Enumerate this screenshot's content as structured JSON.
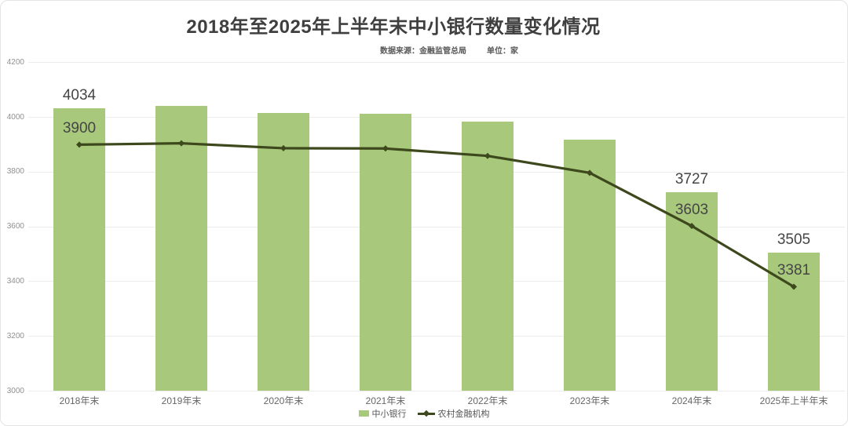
{
  "chart_data": {
    "type": "combo-bar-line",
    "title": "2018年至2025年上半年末中小银行数量变化情况",
    "source_note": "数据来源：金融监管总局",
    "unit_note": "单位：家",
    "categories": [
      "2018年末",
      "2019年末",
      "2020年末",
      "2021年末",
      "2022年末",
      "2023年末",
      "2024年末",
      "2025年上半年末"
    ],
    "series": [
      {
        "name": "中小银行",
        "type": "bar",
        "color": "#a8c87c",
        "values": [
          4034,
          4042,
          4017,
          4013,
          3984,
          3919,
          3727,
          3505
        ],
        "shown_labels": {
          "0": "4034",
          "6": "3727",
          "7": "3505"
        }
      },
      {
        "name": "农村金融机构",
        "type": "line",
        "color": "#3d481d",
        "values": [
          3900,
          3905,
          3887,
          3886,
          3859,
          3797,
          3603,
          3381
        ],
        "shown_labels": {
          "0": "3900",
          "6": "3603",
          "7": "3381"
        }
      }
    ],
    "ylim": [
      3000,
      4200
    ],
    "ytick_step": 200,
    "grid": true,
    "legend_position": "bottom"
  },
  "legend": [
    {
      "label": "中小银行",
      "marker": "square",
      "color": "#a8c87c"
    },
    {
      "label": "农村金融机构",
      "marker": "line-diamond",
      "color": "#3d481d"
    }
  ],
  "colors": {
    "grid": "#ececec",
    "ytick_text": "#909090",
    "xtick_text": "#666666",
    "value_label": "#454545",
    "title_text": "#3f3f3f",
    "subtitle_text": "#595959",
    "legend_text": "#555555"
  }
}
